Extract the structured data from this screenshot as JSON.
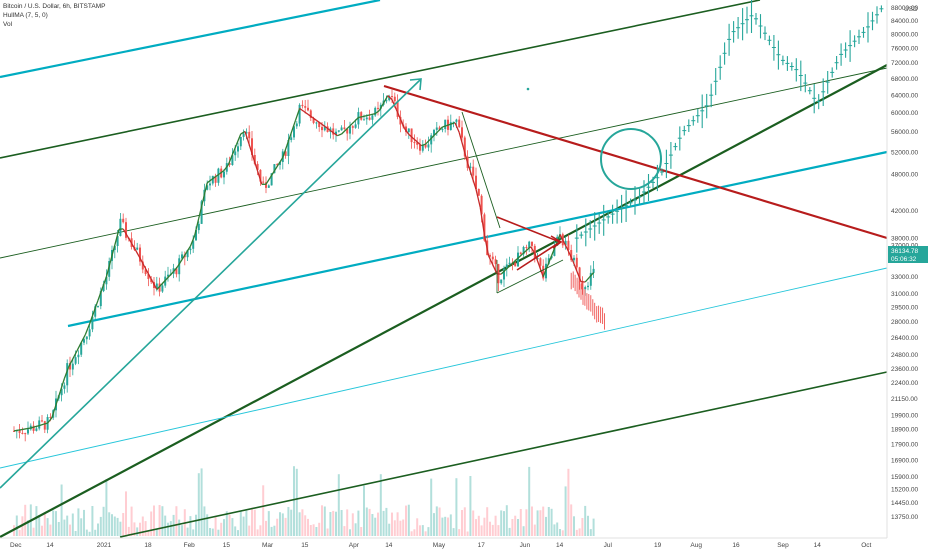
{
  "chart": {
    "symbol_line": "Bitcoin / U.S. Dollar, 6h, BITSTAMP",
    "indicator_line": "HullMA (7, 5, 0)",
    "volume_line": "Vol",
    "currency_label": "USD",
    "current_price_label": "36134.78",
    "countdown_label": "05:06:32"
  },
  "colors": {
    "bull": "#26a69a",
    "bear": "#ef5350",
    "hull_green": "#2e7d32",
    "hull_red": "#c62828",
    "dark_green_line": "#1b5e20",
    "teal_line": "#00acc1",
    "teal_light": "#26c6da",
    "red_line": "#b71c1c",
    "arrow_teal": "#26a69a",
    "price_tag_bg": "#26a69a",
    "axis_bg": "#ffffff"
  },
  "chart_data": {
    "type": "line",
    "title": "Bitcoin / U.S. Dollar, 6h, BITSTAMP",
    "yscale": "log",
    "ylim": [
      13000,
      88000
    ],
    "y_ticks": [
      "88000.00",
      "84000.00",
      "80000.00",
      "76000.00",
      "72000.00",
      "68000.00",
      "64000.00",
      "60000.00",
      "56000.00",
      "52000.00",
      "48000.00",
      "42000.00",
      "38000.00",
      "37000.00",
      "33000.00",
      "31000.00",
      "29500.00",
      "28000.00",
      "26400.00",
      "24800.00",
      "23600.00",
      "22400.00",
      "21150.00",
      "19900.00",
      "18900.00",
      "17900.00",
      "16900.00",
      "15900.00",
      "15200.00",
      "14450.00",
      "13750.00"
    ],
    "x_ticks": [
      "Dec",
      "14",
      "2021",
      "18",
      "Feb",
      "15",
      "Mar",
      "15",
      "Apr",
      "14",
      "May",
      "17",
      "Jun",
      "14",
      "Jul",
      "19",
      "Aug",
      "16",
      "Sep",
      "14",
      "Oct"
    ],
    "series": [
      {
        "kind": "price",
        "x": [
          "2020-12-01",
          "2020-12-07",
          "2020-12-14",
          "2020-12-20",
          "2020-12-27",
          "2021-01-03",
          "2021-01-08",
          "2021-01-14",
          "2021-01-21",
          "2021-01-28",
          "2021-02-03",
          "2021-02-08",
          "2021-02-15",
          "2021-02-21",
          "2021-02-28",
          "2021-03-07",
          "2021-03-13",
          "2021-03-20",
          "2021-03-27",
          "2021-04-03",
          "2021-04-10",
          "2021-04-14",
          "2021-04-20",
          "2021-04-26",
          "2021-05-03",
          "2021-05-08",
          "2021-05-12",
          "2021-05-16",
          "2021-05-19",
          "2021-05-23",
          "2021-05-29",
          "2021-06-04",
          "2021-06-08",
          "2021-06-14",
          "2021-06-18",
          "2021-06-22",
          "2021-06-26"
        ],
        "y": [
          18800,
          19000,
          19400,
          23500,
          27000,
          33000,
          40000,
          36000,
          31500,
          34000,
          37500,
          46500,
          49000,
          57000,
          45500,
          51000,
          61000,
          58000,
          55000,
          59000,
          60000,
          64500,
          56000,
          53000,
          57000,
          58000,
          50000,
          44000,
          36000,
          33000,
          35000,
          37000,
          33000,
          38500,
          35500,
          32000,
          33500
        ]
      },
      {
        "kind": "projection",
        "x": [
          "2021-06-20",
          "2021-07-01",
          "2021-07-12",
          "2021-07-20",
          "2021-07-28",
          "2021-08-06",
          "2021-08-14",
          "2021-08-22",
          "2021-09-01",
          "2021-09-07",
          "2021-09-14",
          "2021-09-22",
          "2021-10-01",
          "2021-10-07"
        ],
        "y": [
          38000,
          41000,
          44000,
          48000,
          56000,
          62000,
          80000,
          86000,
          73000,
          70000,
          62000,
          74000,
          81000,
          88000
        ]
      }
    ]
  }
}
